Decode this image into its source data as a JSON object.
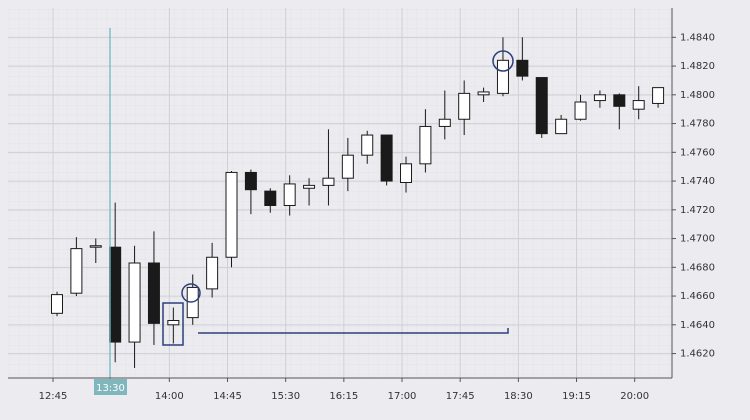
{
  "chart_data": {
    "type": "candlestick",
    "categories": [
      "12:45",
      null,
      null,
      null,
      null,
      null,
      "14:00",
      null,
      null,
      "14:45",
      null,
      null,
      "15:30",
      null,
      null,
      "16:15",
      null,
      null,
      "17:00",
      null,
      null,
      "17:45",
      null,
      null,
      "18:30",
      null,
      null,
      "19:15",
      null,
      null,
      "20:00",
      null
    ],
    "open": [
      1.4648,
      1.4662,
      1.4694,
      1.4694,
      1.4628,
      1.4683,
      1.464,
      1.4645,
      1.4665,
      1.4687,
      1.4746,
      1.4733,
      1.4723,
      1.4735,
      1.4737,
      1.4742,
      1.4758,
      1.4772,
      1.4739,
      1.4752,
      1.4778,
      1.4783,
      1.48,
      1.4801,
      1.4824,
      1.4812,
      1.4773,
      1.4783,
      1.4796,
      1.48,
      1.479,
      1.4794
    ],
    "high": [
      1.4663,
      1.4701,
      1.47,
      1.4725,
      1.4695,
      1.4705,
      1.4652,
      1.4675,
      1.4697,
      1.4747,
      1.4748,
      1.4735,
      1.4744,
      1.4742,
      1.4776,
      1.477,
      1.4775,
      1.4772,
      1.4757,
      1.479,
      1.4803,
      1.481,
      1.4805,
      1.484,
      1.484,
      1.4812,
      1.4786,
      1.48,
      1.4803,
      1.4801,
      1.4806,
      1.4805
    ],
    "low": [
      1.4646,
      1.466,
      1.4683,
      1.4614,
      1.461,
      1.4626,
      1.4627,
      1.464,
      1.4659,
      1.468,
      1.4717,
      1.4718,
      1.4716,
      1.4723,
      1.4723,
      1.4733,
      1.4752,
      1.4737,
      1.4732,
      1.4746,
      1.4769,
      1.4772,
      1.4795,
      1.4799,
      1.481,
      1.477,
      1.4773,
      1.4782,
      1.4791,
      1.4776,
      1.4783,
      1.4791
    ],
    "close": [
      1.4661,
      1.4693,
      1.4695,
      1.4628,
      1.4683,
      1.4641,
      1.4643,
      1.4666,
      1.4687,
      1.4746,
      1.4734,
      1.4723,
      1.4738,
      1.4737,
      1.4742,
      1.4758,
      1.4772,
      1.474,
      1.4752,
      1.4778,
      1.4783,
      1.4801,
      1.4802,
      1.4824,
      1.4813,
      1.4773,
      1.4783,
      1.4795,
      1.48,
      1.4792,
      1.4796,
      1.4805
    ],
    "up_color": "#ffffff",
    "down_color": "#1a1a1a",
    "ylim": [
      1.4603,
      1.4859
    ],
    "yticks": [
      {
        "value": 1.462,
        "label": "1.4620"
      },
      {
        "value": 1.464,
        "label": "1.4640"
      },
      {
        "value": 1.466,
        "label": "1.4660"
      },
      {
        "value": 1.468,
        "label": "1.4680"
      },
      {
        "value": 1.47,
        "label": "1.4700"
      },
      {
        "value": 1.472,
        "label": "1.4720"
      },
      {
        "value": 1.474,
        "label": "1.4740"
      },
      {
        "value": 1.476,
        "label": "1.4760"
      },
      {
        "value": 1.478,
        "label": "1.4780"
      },
      {
        "value": 1.48,
        "label": "1.4800"
      },
      {
        "value": 1.482,
        "label": "1.4820"
      },
      {
        "value": 1.484,
        "label": "1.4840"
      }
    ],
    "grid": true,
    "crosshair_label": "13:30"
  }
}
